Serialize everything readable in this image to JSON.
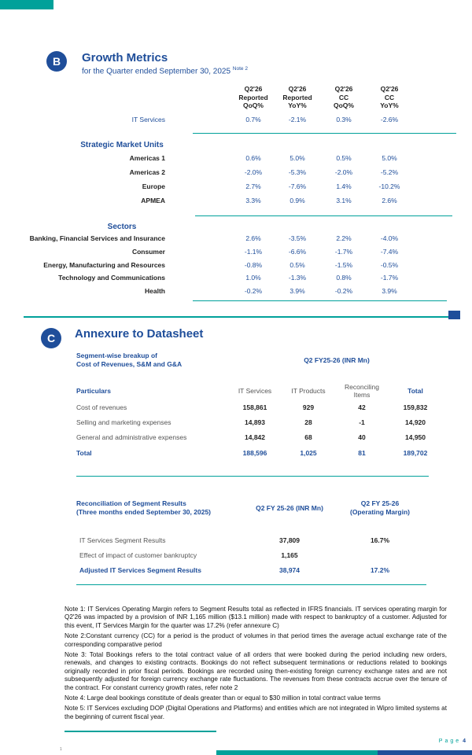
{
  "growth": {
    "badge": "B",
    "title": "Growth Metrics",
    "subtitle": "for the Quarter ended September 30, 2025",
    "subtitle_note": "Note 2",
    "columns": [
      [
        "Q2'26",
        "Reported",
        "QoQ%"
      ],
      [
        "Q2'26",
        "Reported",
        "YoY%"
      ],
      [
        "Q2'26",
        "CC",
        "QoQ%"
      ],
      [
        "Q2'26",
        "CC",
        "YoY%"
      ]
    ],
    "it_services": {
      "label": "IT Services",
      "values": [
        "0.7%",
        "-2.1%",
        "0.3%",
        "-2.6%"
      ]
    },
    "groups": [
      {
        "title": "Strategic Market Units",
        "rows": [
          {
            "label": "Americas 1",
            "values": [
              "0.6%",
              "5.0%",
              "0.5%",
              "5.0%"
            ]
          },
          {
            "label": "Americas 2",
            "values": [
              "-2.0%",
              "-5.3%",
              "-2.0%",
              "-5.2%"
            ]
          },
          {
            "label": "Europe",
            "values": [
              "2.7%",
              "-7.6%",
              "1.4%",
              "-10.2%"
            ]
          },
          {
            "label": "APMEA",
            "values": [
              "3.3%",
              "0.9%",
              "3.1%",
              "2.6%"
            ]
          }
        ]
      },
      {
        "title": "Sectors",
        "rows": [
          {
            "label": "Banking, Financial Services and Insurance",
            "values": [
              "2.6%",
              "-3.5%",
              "2.2%",
              "-4.0%"
            ]
          },
          {
            "label": "Consumer",
            "values": [
              "-1.1%",
              "-6.6%",
              "-1.7%",
              "-7.4%"
            ]
          },
          {
            "label": "Energy, Manufacturing and Resources",
            "values": [
              "-0.8%",
              "0.5%",
              "-1.5%",
              "-0.5%"
            ]
          },
          {
            "label": "Technology and Communications",
            "values": [
              "1.0%",
              "-1.3%",
              "0.8%",
              "-1.7%"
            ]
          },
          {
            "label": "Health",
            "values": [
              "-0.2%",
              "3.9%",
              "-0.2%",
              "3.9%"
            ]
          }
        ]
      }
    ]
  },
  "annexure": {
    "badge": "C",
    "title": "Annexure to Datasheet"
  },
  "cost_table": {
    "title": [
      "Segment-wise breakup of",
      "Cost of Revenues, S&M and G&A"
    ],
    "period": "Q2 FY25-26 (INR Mn)",
    "columns": [
      "Particulars",
      "IT Services",
      "IT Products",
      "Reconciling Items",
      "Total"
    ],
    "rows": [
      [
        "Cost of revenues",
        "158,861",
        "929",
        "42",
        "159,832"
      ],
      [
        "Selling and marketing expenses",
        "14,893",
        "28",
        "-1",
        "14,920"
      ],
      [
        "General and administrative expenses",
        "14,842",
        "68",
        "40",
        "14,950"
      ],
      [
        "Total",
        "188,596",
        "1,025",
        "81",
        "189,702"
      ]
    ]
  },
  "recon_table": {
    "title": [
      "Reconciliation of Segment Results",
      "(Three months ended September 30, 2025)"
    ],
    "columns": [
      [
        "Q2 FY 25-26 (INR Mn)"
      ],
      [
        "Q2 FY 25-26",
        "(Operating Margin)"
      ]
    ],
    "rows": [
      {
        "label": "IT Services Segment Results",
        "values": [
          "37,809",
          "16.7%"
        ]
      },
      {
        "label": "Effect of impact of customer bankruptcy",
        "values": [
          "1,165"
        ]
      },
      {
        "label": "Adjusted IT Services Segment Results",
        "values": [
          "38,974",
          "17.2%"
        ]
      }
    ]
  },
  "notes": [
    "Note 1: IT Services Operating Margin refers to Segment Results total as reflected in IFRS financials. IT services operating margin for Q2'26 was impacted by a provision of INR 1,165 million ($13.1 million) made with respect to bankruptcy of a customer. Adjusted for this event, IT Services Margin for the quarter was 17.2% (refer annexure C)",
    "Note 2:Constant currency (CC) for a period is the product of volumes in that period times the average actual exchange rate of the corresponding comparative period",
    "Note 3: Total Bookings refers to the total contract value of all orders that were booked during the period including new orders, renewals, and changes to existing contracts. Bookings do not reflect subsequent terminations or reductions related to bookings originally recorded in prior fiscal periods. Bookings are recorded using then-existing foreign currency exchange rates and are not subsequently adjusted for foreign currency exchange rate fluctuations. The revenues from these contracts accrue over the tenure of the contract. For constant currency growth rates, refer note 2",
    "Note 4: Large deal bookings constitute of deals greater than or equal to $30 million in total contract value terms",
    "Note 5: IT Services excluding DOP (Digital Operations and Platforms) and entities which are not integrated in Wipro limited systems at the beginning of current fiscal year."
  ],
  "footer": {
    "mark": "1",
    "page_label": "Page",
    "page_number": "4"
  }
}
